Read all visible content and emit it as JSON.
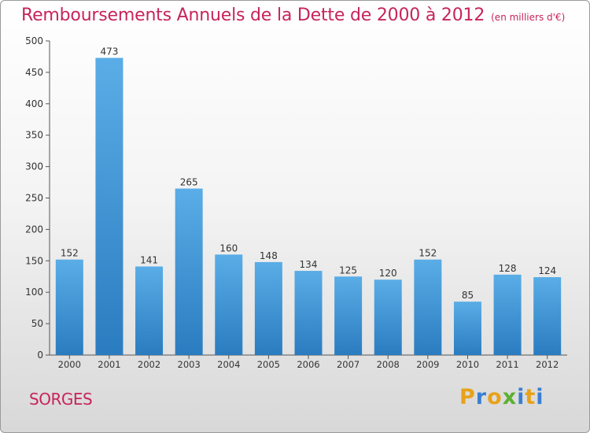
{
  "header": {
    "title": "Remboursements Annuels de la Dette de 2000 à 2012",
    "unit": "(en milliers d'€)"
  },
  "footer": {
    "commune": "SORGES",
    "logo_text": "Proxiti"
  },
  "colors": {
    "title": "#c7245a",
    "bar_top": "#5aade6",
    "bar_bottom": "#2a7cc0",
    "logo": [
      "#e8a21a",
      "#3a7fd0",
      "#e8a21a",
      "#5ab030",
      "#3a7fd0",
      "#e8a21a",
      "#3a7fd0"
    ]
  },
  "chart_data": {
    "type": "bar",
    "title": "Remboursements Annuels de la Dette de 2000 à 2012",
    "subtitle": "(en milliers d'€)",
    "categories": [
      "2000",
      "2001",
      "2002",
      "2003",
      "2004",
      "2005",
      "2006",
      "2007",
      "2008",
      "2009",
      "2010",
      "2011",
      "2012"
    ],
    "values": [
      152,
      473,
      141,
      265,
      160,
      148,
      134,
      125,
      120,
      152,
      85,
      128,
      124
    ],
    "ylim": [
      0,
      500
    ],
    "yticks": [
      0,
      50,
      100,
      150,
      200,
      250,
      300,
      350,
      400,
      450,
      500
    ],
    "xlabel": "",
    "ylabel": "",
    "grid": false,
    "legend": "none"
  }
}
